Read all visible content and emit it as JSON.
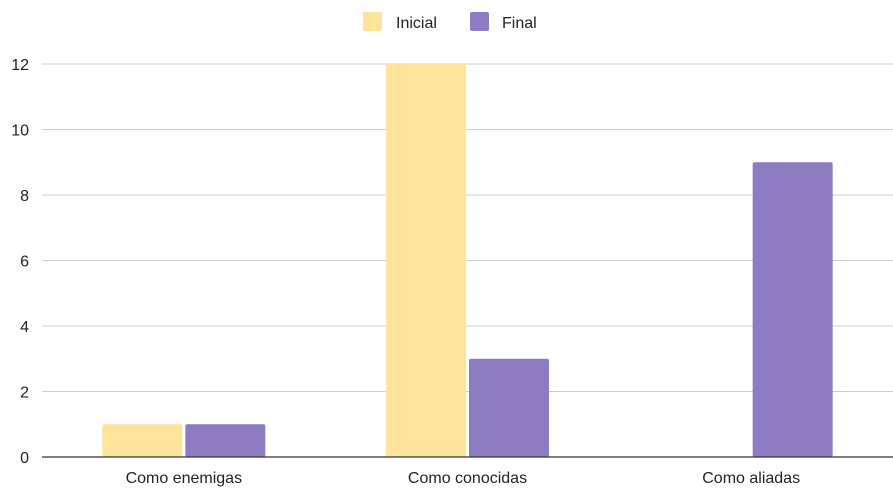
{
  "chart_data": {
    "type": "bar",
    "title": "",
    "xlabel": "",
    "ylabel": "",
    "categories": [
      "Como enemigas",
      "Como conocidas",
      "Como aliadas"
    ],
    "series": [
      {
        "name": "Inicial",
        "values": [
          1,
          12,
          0
        ],
        "color": "#fde49a"
      },
      {
        "name": "Final",
        "values": [
          1,
          3,
          9
        ],
        "color": "#8e7cc3"
      }
    ],
    "ylim": [
      0,
      12
    ],
    "yticks": [
      0,
      2,
      4,
      6,
      8,
      10,
      12
    ],
    "grid": true,
    "legend": "top-center",
    "colors": {
      "grid": "#cccccc",
      "axis": "#333333",
      "text": "#222222"
    }
  }
}
